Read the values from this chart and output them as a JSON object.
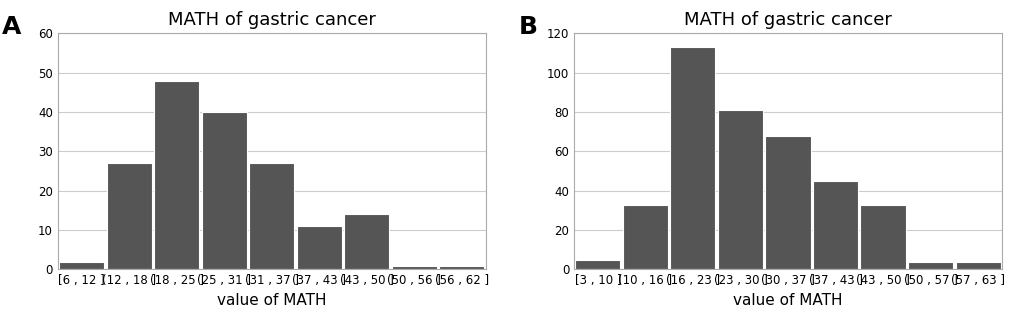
{
  "panel_A": {
    "label": "A",
    "title": "MATH of gastric cancer",
    "categories": [
      "[6 , 12 ]",
      "(12 , 18 ]",
      "(18 , 25 ]",
      "(25 , 31 ]",
      "(31 , 37 ]",
      "(37 , 43 ]",
      "(43 , 50 ]",
      "(50 , 56 ]",
      "(56 , 62 ]"
    ],
    "values": [
      2,
      27,
      48,
      40,
      27,
      11,
      14,
      1,
      1
    ],
    "ylim": [
      0,
      60
    ],
    "yticks": [
      0,
      10,
      20,
      30,
      40,
      50,
      60
    ],
    "xlabel": "value of MATH",
    "bar_color": "#555555",
    "bar_edgecolor": "#555555"
  },
  "panel_B": {
    "label": "B",
    "title": "MATH of gastric cancer",
    "categories": [
      "[3 , 10 ]",
      "(10 , 16 ]",
      "(16 , 23 ]",
      "(23 , 30 ]",
      "(30 , 37 ]",
      "(37 , 43 ]",
      "(43 , 50 ]",
      "(50 , 57 ]",
      "(57 , 63 ]"
    ],
    "values": [
      5,
      33,
      113,
      81,
      68,
      45,
      33,
      4,
      4
    ],
    "ylim": [
      0,
      120
    ],
    "yticks": [
      0,
      20,
      40,
      60,
      80,
      100,
      120
    ],
    "xlabel": "value of MATH",
    "bar_color": "#555555",
    "bar_edgecolor": "#555555"
  },
  "background_color": "#ffffff",
  "panel_label_fontsize": 18,
  "title_fontsize": 13,
  "tick_fontsize": 8.5,
  "xlabel_fontsize": 11,
  "grid_color": "#cccccc",
  "spine_color": "#aaaaaa"
}
